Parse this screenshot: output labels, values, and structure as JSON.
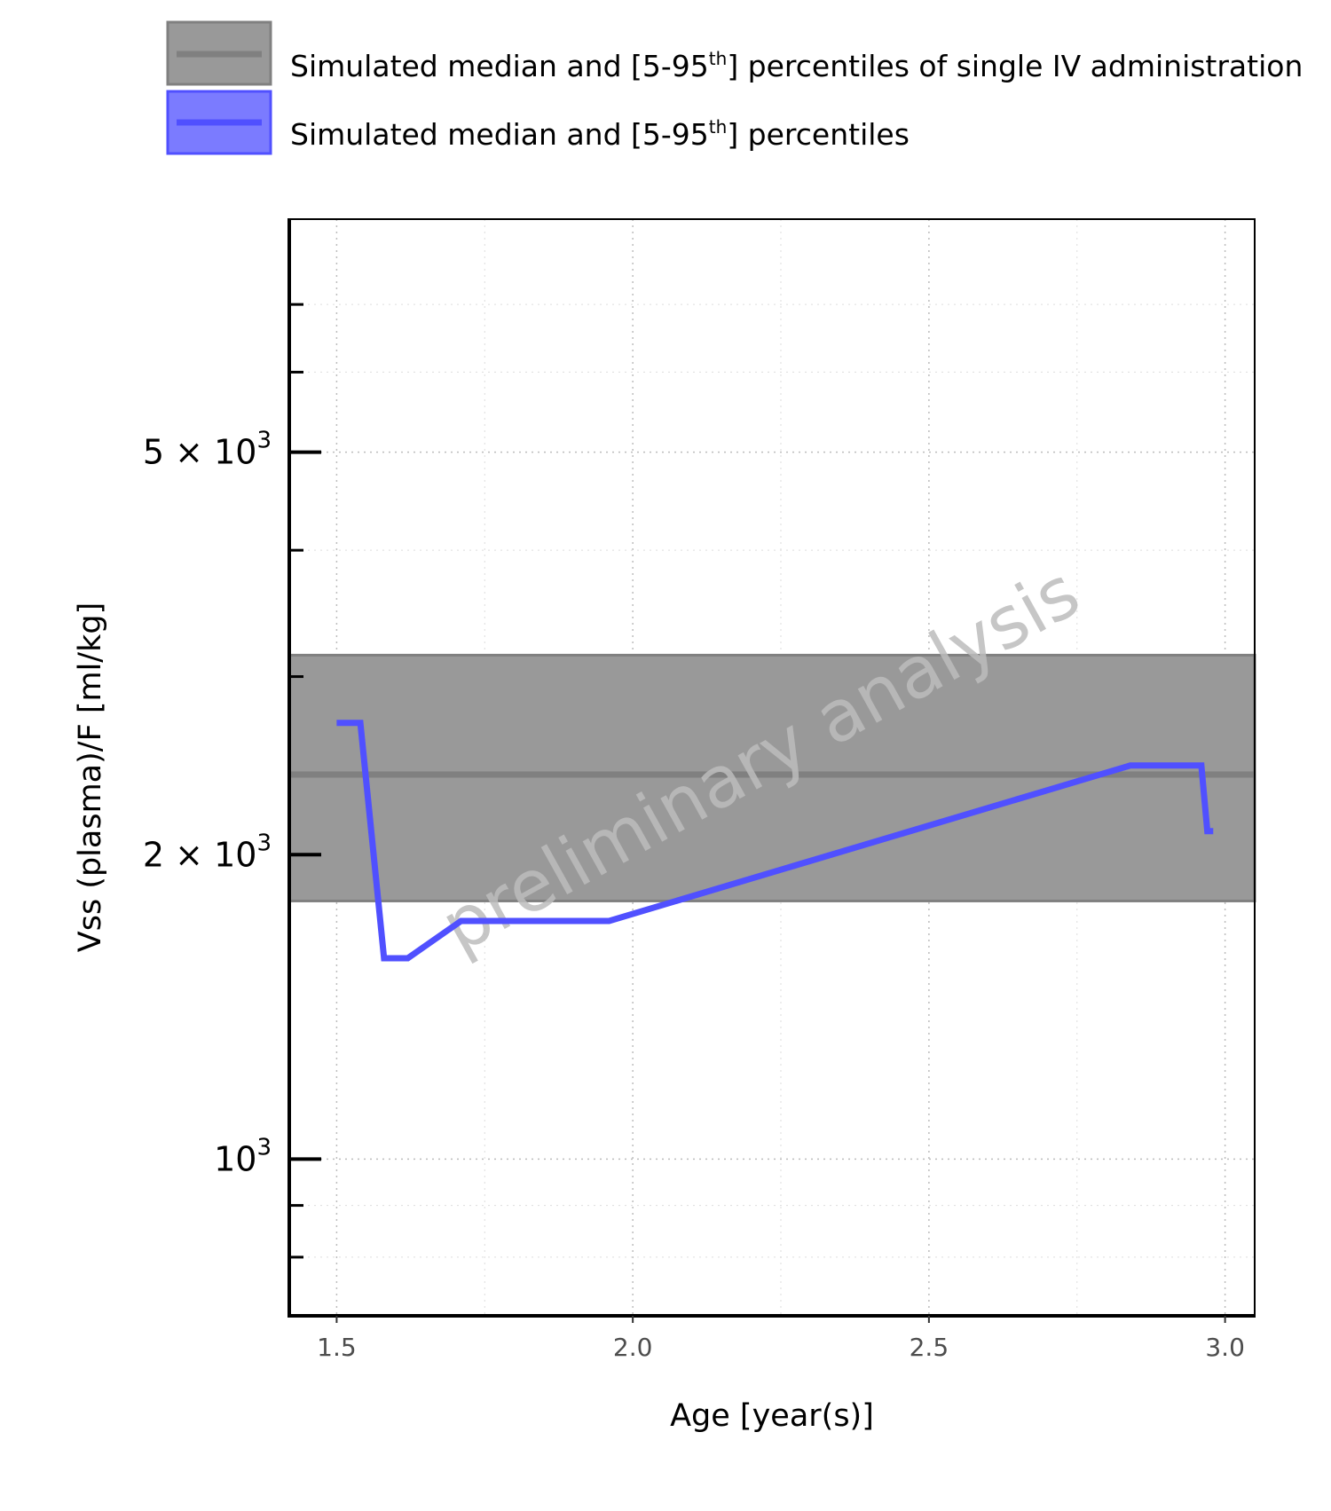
{
  "chart_data": {
    "type": "line",
    "xlabel": "Age [year(s)]",
    "ylabel": "Vss (plasma)/F [ml/kg]",
    "y_scale": "log",
    "xlim": [
      1.42,
      3.05
    ],
    "ylim": [
      700,
      8500
    ],
    "grid": true,
    "legend_position": "top-left",
    "watermark": "preliminary analysis",
    "x_ticks": [
      {
        "value": 1.5,
        "label": "1.5"
      },
      {
        "value": 2.0,
        "label": "2.0"
      },
      {
        "value": 2.5,
        "label": "2.5"
      },
      {
        "value": 3.0,
        "label": "3.0"
      }
    ],
    "y_ticks": [
      {
        "value": 5000,
        "label": "5 × 10",
        "exp": "3"
      },
      {
        "value": 2000,
        "label": "2 × 10",
        "exp": "3"
      },
      {
        "value": 1000,
        "label": "10",
        "exp": "3"
      }
    ],
    "y_minor_ticks": [
      800,
      900,
      3000,
      4000,
      6000,
      7000
    ],
    "legend": [
      {
        "prefix": "Simulated median and [5-95",
        "sup": "th",
        "suffix": "] percentiles of single IV administration"
      },
      {
        "prefix": "Simulated median and [5-95",
        "sup": "th",
        "suffix": "] percentiles"
      }
    ],
    "colors": {
      "reference_band": "#999999",
      "reference_line": "#808080",
      "series": "#5050ff",
      "series_band": "#7b7bff"
    },
    "series": [
      {
        "role": "reference",
        "median": 2400,
        "p5": 1800,
        "p95": 3150
      },
      {
        "role": "simulated",
        "x": [
          1.5,
          1.54,
          1.58,
          1.62,
          1.71,
          1.96,
          2.84,
          2.96,
          2.97,
          2.98
        ],
        "y": [
          2700,
          2700,
          1580,
          1580,
          1720,
          1720,
          2450,
          2450,
          2110,
          2110
        ]
      }
    ]
  }
}
